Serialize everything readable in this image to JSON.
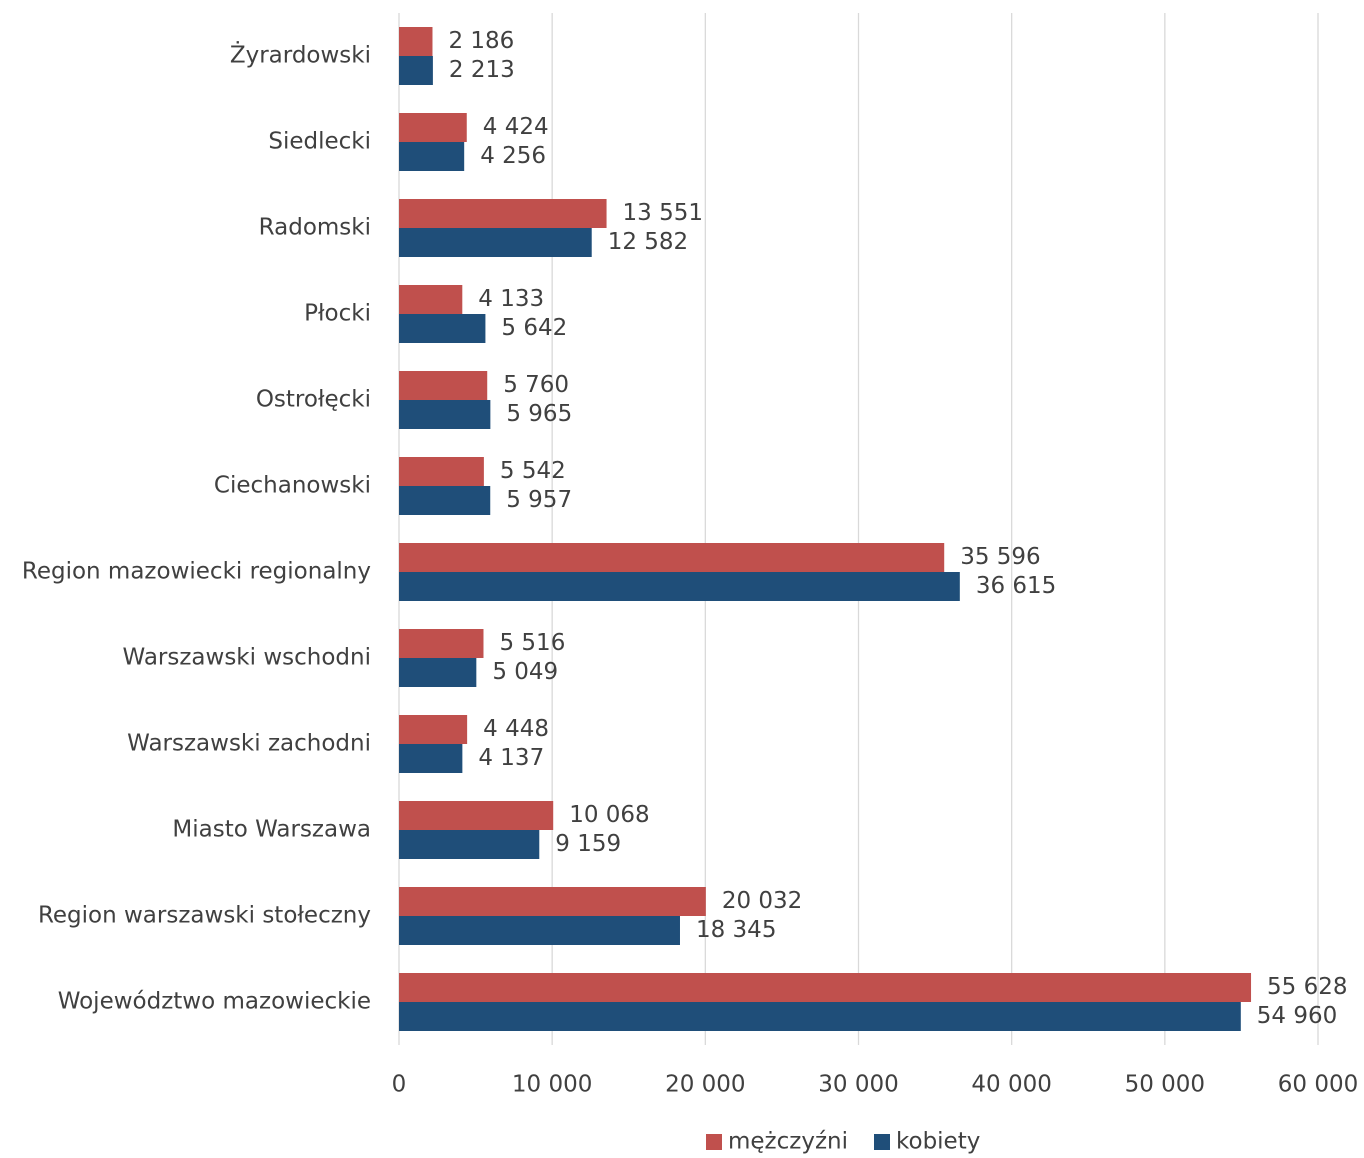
{
  "chart_data": {
    "type": "barh",
    "categories": [
      "Żyrardowski",
      "Siedlecki",
      "Radomski",
      "Płocki",
      "Ostrołęcki",
      "Ciechanowski",
      "Region mazowiecki regionalny",
      "Warszawski wschodni",
      "Warszawski zachodni",
      "Miasto Warszawa",
      "Region warszawski stołeczny",
      "Województwo mazowieckie"
    ],
    "series": [
      {
        "name": "mężczyźni",
        "color": "#c0504d",
        "values": [
          2186,
          4424,
          13551,
          4133,
          5760,
          5542,
          35596,
          5516,
          4448,
          10068,
          20032,
          55628
        ],
        "value_labels": [
          "2 186",
          "4 424",
          "13 551",
          "4 133",
          "5 760",
          "5 542",
          "35 596",
          "5 516",
          "4 448",
          "10 068",
          "20 032",
          "55 628"
        ]
      },
      {
        "name": "kobiety",
        "color": "#1f4e79",
        "values": [
          2213,
          4256,
          12582,
          5642,
          5965,
          5957,
          36615,
          5049,
          4137,
          9159,
          18345,
          54960
        ],
        "value_labels": [
          "2 213",
          "4 256",
          "12 582",
          "5 642",
          "5 965",
          "5 957",
          "36 615",
          "5 049",
          "4 137",
          "9 159",
          "18 345",
          "54 960"
        ]
      }
    ],
    "xlim": [
      0,
      60000
    ],
    "xticks": [
      0,
      {
        "value": 10000,
        "label": "10 000"
      },
      {
        "value": 20000,
        "label": "20 000"
      },
      {
        "value": 30000,
        "label": "30 000"
      },
      {
        "value": 40000,
        "label": "40 000"
      },
      {
        "value": 50000,
        "label": "50 000"
      },
      {
        "value": 60000,
        "label": "60 000"
      }
    ],
    "grid": true,
    "legend": "bottom"
  }
}
